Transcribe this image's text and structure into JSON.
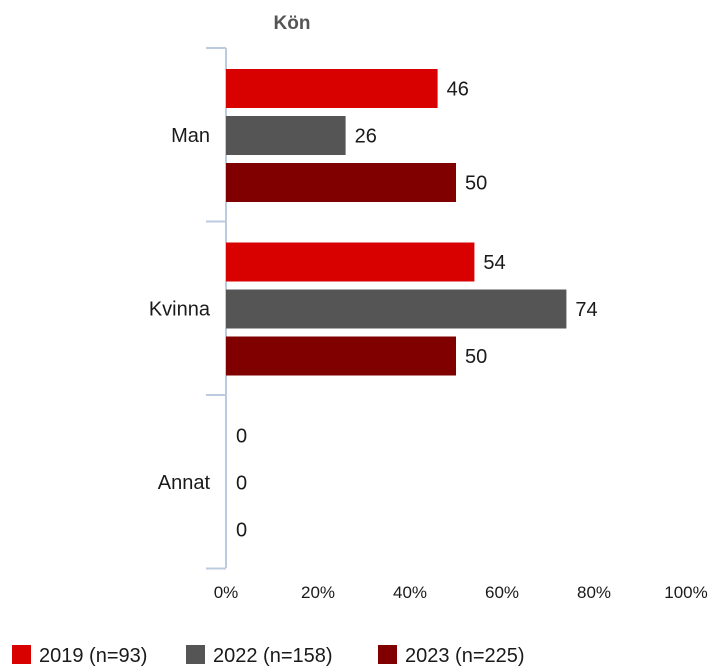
{
  "chart_data": {
    "type": "bar",
    "orientation": "horizontal",
    "title": "Kön",
    "categories": [
      "Man",
      "Kvinna",
      "Annat"
    ],
    "series": [
      {
        "name": "2019 (n=93)",
        "values": [
          46,
          54,
          0
        ],
        "color": "#d90000"
      },
      {
        "name": "2022 (n=158)",
        "values": [
          26,
          74,
          0
        ],
        "color": "#555555"
      },
      {
        "name": "2023 (n=225)",
        "values": [
          50,
          50,
          0
        ],
        "color": "#800000"
      }
    ],
    "xlim": [
      0,
      100
    ],
    "xticks": [
      "0%",
      "20%",
      "40%",
      "60%",
      "80%",
      "100%"
    ],
    "legend_position": "bottom",
    "grid": false
  }
}
